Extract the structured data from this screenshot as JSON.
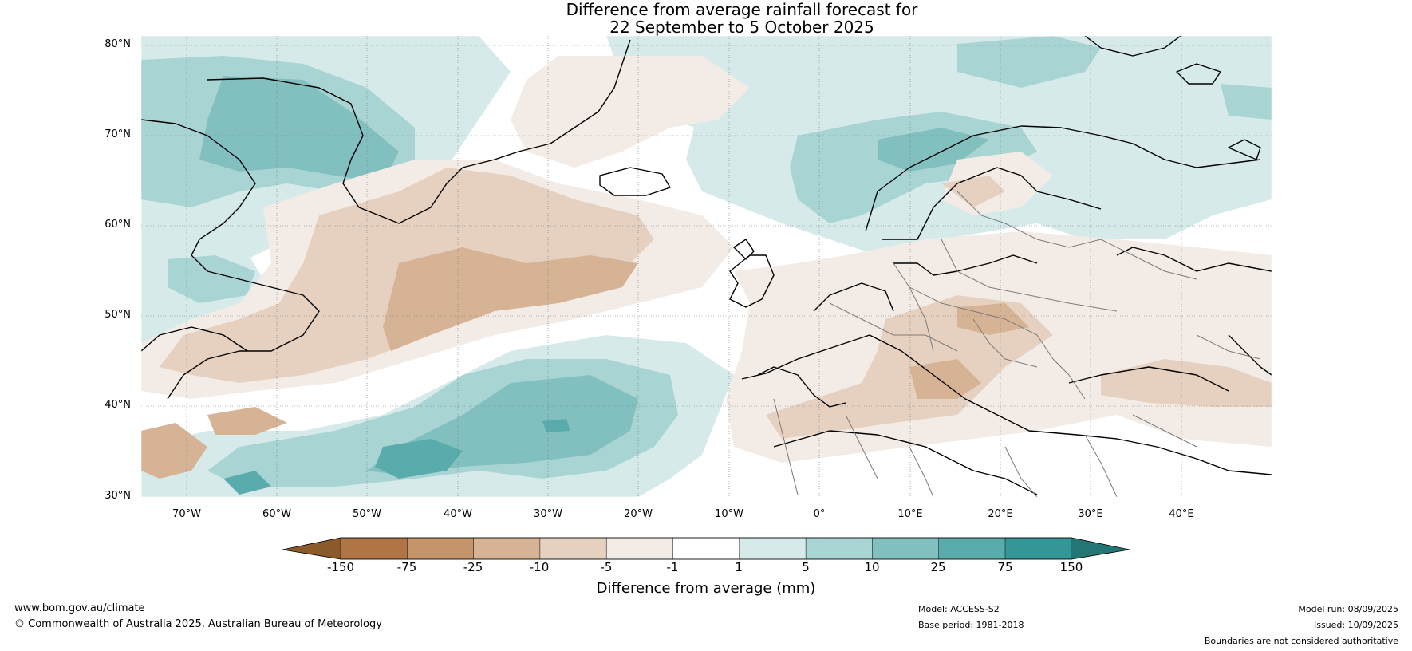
{
  "title": {
    "line1": "Difference from average rainfall forecast for",
    "line2": "22 September to 5 October 2025"
  },
  "map": {
    "lat_ticks": [
      "80°N",
      "70°N",
      "60°N",
      "50°N",
      "40°N",
      "30°N"
    ],
    "lon_ticks": [
      "70°W",
      "60°W",
      "50°W",
      "40°W",
      "30°W",
      "20°W",
      "10°W",
      "0°",
      "10°E",
      "20°E",
      "30°E",
      "40°E"
    ],
    "lat_range": [
      30,
      80
    ],
    "lon_range": [
      -75,
      50
    ]
  },
  "colorbar": {
    "title": "Difference from average (mm)",
    "labels": [
      "-150",
      "-75",
      "-25",
      "-10",
      "-5",
      "-1",
      "1",
      "5",
      "10",
      "25",
      "75",
      "150"
    ],
    "colors": [
      "#8b5a2b",
      "#b07545",
      "#c4946a",
      "#d6b394",
      "#e6d1c0",
      "#f3ece6",
      "#ffffff",
      "#d6eaea",
      "#a9d4d4",
      "#82c0c0",
      "#5aacac",
      "#349696",
      "#247676"
    ]
  },
  "footer": {
    "website": "www.bom.gov.au/climate",
    "copyright": "© Commonwealth of Australia 2025, Australian Bureau of Meteorology",
    "model": "Model: ACCESS-S2",
    "base_period": "Base period: 1981-2018",
    "model_run": "Model run: 08/09/2025",
    "issued": "Issued: 10/09/2025",
    "disclaimer": "Boundaries are not considered authoritative"
  }
}
